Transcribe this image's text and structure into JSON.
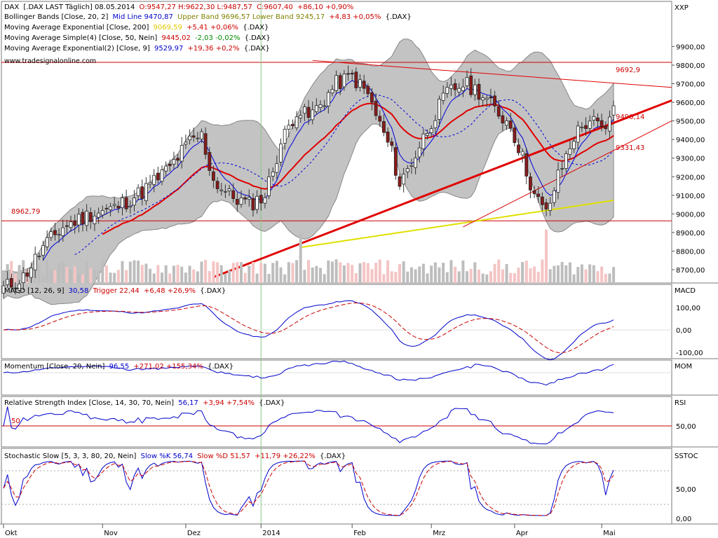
{
  "chart_data": [
    {
      "type": "candlestick",
      "panel": "price",
      "header": {
        "line1": {
          "symbol": "DAX",
          "desc": "[.DAX LAST Täglich] 08.05.2014",
          "ohlc": "O:9547,27 H:9622,30 L:9487,57",
          "close": "C:9607,40",
          "change": "+86,10 +0,90%"
        },
        "bollinger": {
          "name": "Bollinger Bands [Close, 20, 2]",
          "mid": "Mid Line 9470,87",
          "bands": "Upper Band 9696,57 Lower Band 9245,17",
          "change": "+4,83 +0,05%",
          "ticker": "{.DAX}"
        },
        "ema200": {
          "name": "Moving Average Exponential [Close, 200]",
          "value": "9069,59",
          "change": "+5,41 +0,06%",
          "ticker": "{.DAX}"
        },
        "sma50": {
          "name": "Moving Average Simple(4) [Close, 50, Nein]",
          "value": "9445,02",
          "change": "-2,03 -0,02%",
          "ticker": "{.DAX}"
        },
        "ema9": {
          "name": "Moving Average Exponential(2) [Close, 9]",
          "value": "9529,97",
          "change": "+19,36 +0,2%",
          "ticker": "{.DAX}"
        },
        "website": "www.tradesignalonline.com"
      },
      "yaxis_title": "XXP",
      "y_ticks": [
        "9900,00",
        "9800,00",
        "9700,00",
        "9600,00",
        "9500,00",
        "9400,00",
        "9300,00",
        "9200,00",
        "9100,00",
        "9000,00",
        "8900,00",
        "8800,00",
        "8700,00"
      ],
      "ylim": [
        8640,
        9980
      ],
      "annotations": {
        "level_8962": "8962,79",
        "level_9692": "9692,9",
        "level_9490": "9490,14",
        "level_9331": "9331,43"
      },
      "horizontal_levels": [
        8962.79,
        9815
      ],
      "x_dates": [
        "Okt",
        "Nov",
        "Dez",
        "2014",
        "Feb",
        "Mrz",
        "Apr",
        "Mai"
      ],
      "colors": {
        "up": "#ffffff",
        "down": "#8b1a1a",
        "wick": "#333333",
        "band_fill": "#c3c3c3",
        "band_edge": "#888888",
        "ema200": "#e0e000",
        "sma50": "#e00000",
        "ema9": "#0000dd",
        "trend": "#e00000",
        "vol_up": "#bdbdbd",
        "vol_down": "#f4c4c4"
      }
    },
    {
      "type": "line",
      "panel": "macd",
      "header": {
        "name": "MACD [12, 26, 9]",
        "value": "30,58",
        "trigger": "Trigger 22,44",
        "change": "+6,48 +26,9%",
        "ticker": "{.DAX}"
      },
      "yaxis_title": "MACD",
      "y_ticks": [
        "100,00",
        "0,00",
        "-100,00"
      ]
    },
    {
      "type": "line",
      "panel": "momentum",
      "header": {
        "name": "Momentum [Close, 20, Nein]",
        "value": "96,55",
        "change": "+271,02 +155,34%",
        "ticker": "{.DAX}"
      },
      "yaxis_title": "MOM"
    },
    {
      "type": "line",
      "panel": "rsi",
      "header": {
        "name": "Relative Strength Index [Close, 14, 30, 70, Nein]",
        "value": "56,17",
        "change": "+3,94 +7,54%",
        "ticker": "{.DAX}"
      },
      "yaxis_title": "RSI",
      "y_ticks": [
        "50,00"
      ],
      "level_label": "50"
    },
    {
      "type": "line",
      "panel": "stochastic",
      "header": {
        "name": "Stochastic Slow [5, 3, 3, 80, 20, Nein]",
        "k": "Slow %K 56,74",
        "d": "Slow %D 51,57",
        "change": "+11,79 +26,22%",
        "ticker": "{.DAX}"
      },
      "yaxis_title": "SSTOC",
      "y_ticks": [
        "50,00",
        "0,00"
      ]
    }
  ]
}
